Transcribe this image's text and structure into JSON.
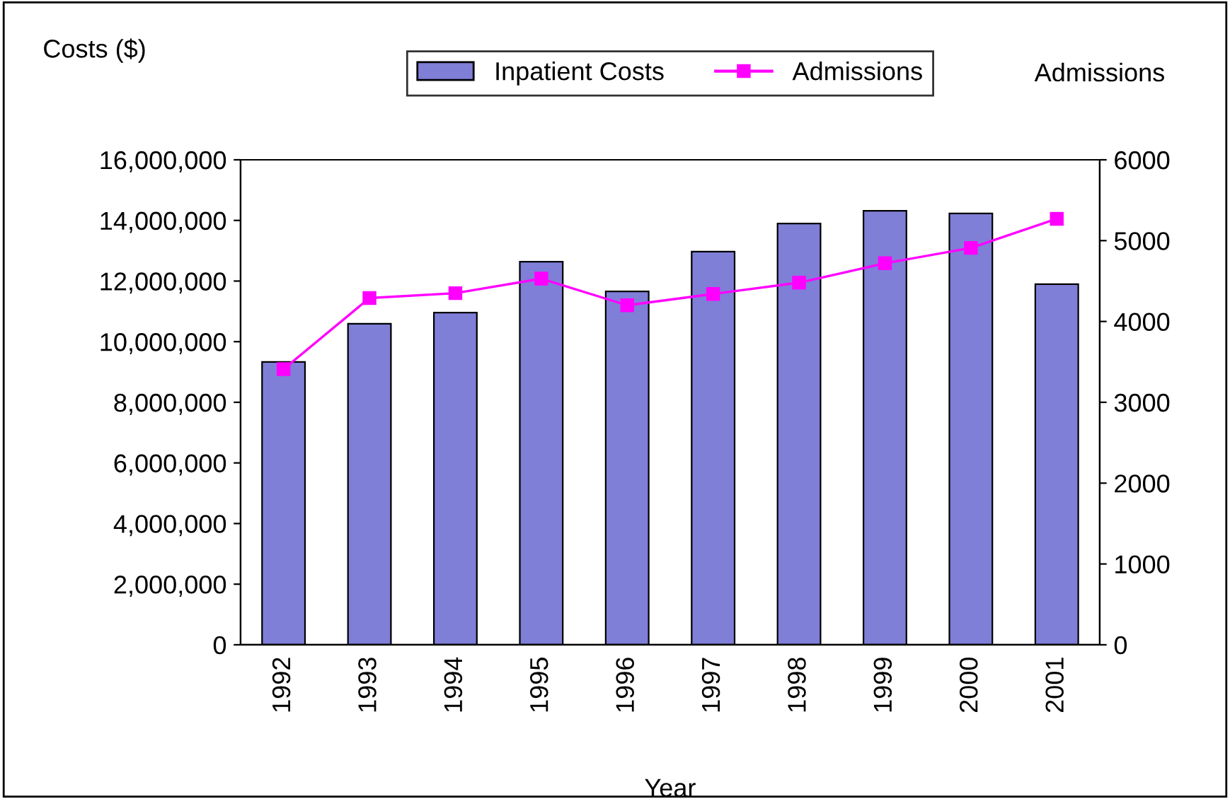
{
  "chart_data": {
    "type": "bar",
    "xlabel": "Year",
    "ylabel": "Costs ($)",
    "y2label": "Admissions",
    "categories": [
      "1992",
      "1993",
      "1994",
      "1995",
      "1996",
      "1997",
      "1998",
      "1999",
      "2000",
      "2001"
    ],
    "series": [
      {
        "name": "Inpatient Costs",
        "color": "#7f7fd8",
        "values": [
          9330000,
          10590000,
          10960000,
          12640000,
          11660000,
          12970000,
          13900000,
          14320000,
          14230000,
          11900000
        ]
      },
      {
        "name": "Admissions",
        "type": "line",
        "axis": "y2",
        "color": "#ff00ff",
        "marker": "square",
        "values": [
          3410,
          4290,
          4350,
          4530,
          4200,
          4340,
          4480,
          4720,
          4910,
          5270
        ]
      }
    ],
    "ylim": [
      0,
      16000000
    ],
    "yticks": [
      {
        "value": 0,
        "label": "0"
      },
      {
        "value": 2000000,
        "label": "2,000,000"
      },
      {
        "value": 4000000,
        "label": "4,000,000"
      },
      {
        "value": 6000000,
        "label": "6,000,000"
      },
      {
        "value": 8000000,
        "label": "8,000,000"
      },
      {
        "value": 10000000,
        "label": "10,000,000"
      },
      {
        "value": 12000000,
        "label": "12,000,000"
      },
      {
        "value": 14000000,
        "label": "14,000,000"
      },
      {
        "value": 16000000,
        "label": "16,000,000"
      }
    ],
    "y2lim": [
      0,
      6000
    ],
    "y2ticks": [
      0,
      1000,
      2000,
      3000,
      4000,
      5000,
      6000
    ],
    "grid": false,
    "legend": "top"
  }
}
